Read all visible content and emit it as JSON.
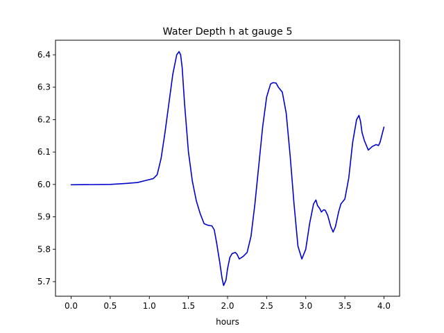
{
  "chart_data": {
    "type": "line",
    "title": "Water Depth h at gauge 5",
    "xlabel": "hours",
    "ylabel": "",
    "xlim": [
      -0.2,
      4.2
    ],
    "ylim": [
      5.655,
      6.445
    ],
    "grid": false,
    "xticks": [
      0.0,
      0.5,
      1.0,
      1.5,
      2.0,
      2.5,
      3.0,
      3.5,
      4.0
    ],
    "xtick_labels": [
      "0.0",
      "0.5",
      "1.0",
      "1.5",
      "2.0",
      "2.5",
      "3.0",
      "3.5",
      "4.0"
    ],
    "yticks": [
      5.7,
      5.8,
      5.9,
      6.0,
      6.1,
      6.2,
      6.3,
      6.4
    ],
    "ytick_labels": [
      "5.7",
      "5.8",
      "5.9",
      "6.0",
      "6.1",
      "6.2",
      "6.3",
      "6.4"
    ],
    "series": [
      {
        "color": "#0000cc",
        "x": [
          0.0,
          0.5,
          0.7,
          0.85,
          0.95,
          1.05,
          1.1,
          1.15,
          1.2,
          1.25,
          1.3,
          1.35,
          1.38,
          1.4,
          1.42,
          1.45,
          1.5,
          1.55,
          1.6,
          1.65,
          1.7,
          1.75,
          1.8,
          1.83,
          1.86,
          1.9,
          1.93,
          1.95,
          1.98,
          2.0,
          2.03,
          2.06,
          2.1,
          2.12,
          2.15,
          2.2,
          2.25,
          2.3,
          2.35,
          2.4,
          2.45,
          2.5,
          2.55,
          2.58,
          2.62,
          2.65,
          2.7,
          2.75,
          2.8,
          2.85,
          2.9,
          2.95,
          3.0,
          3.05,
          3.1,
          3.13,
          3.15,
          3.18,
          3.2,
          3.23,
          3.25,
          3.28,
          3.32,
          3.35,
          3.38,
          3.42,
          3.45,
          3.5,
          3.55,
          3.6,
          3.65,
          3.68,
          3.7,
          3.72,
          3.75,
          3.8,
          3.85,
          3.9,
          3.93,
          3.95,
          4.0
        ],
        "y": [
          5.999,
          6.0,
          6.003,
          6.006,
          6.012,
          6.018,
          6.03,
          6.08,
          6.16,
          6.25,
          6.34,
          6.4,
          6.41,
          6.4,
          6.36,
          6.25,
          6.1,
          6.01,
          5.95,
          5.91,
          5.879,
          5.874,
          5.872,
          5.86,
          5.82,
          5.76,
          5.71,
          5.688,
          5.705,
          5.74,
          5.775,
          5.787,
          5.79,
          5.785,
          5.77,
          5.778,
          5.79,
          5.84,
          5.94,
          6.06,
          6.18,
          6.27,
          6.31,
          6.314,
          6.313,
          6.3,
          6.285,
          6.22,
          6.09,
          5.94,
          5.81,
          5.77,
          5.8,
          5.88,
          5.94,
          5.952,
          5.935,
          5.925,
          5.915,
          5.922,
          5.92,
          5.905,
          5.87,
          5.853,
          5.87,
          5.915,
          5.94,
          5.955,
          6.02,
          6.13,
          6.2,
          6.213,
          6.195,
          6.16,
          6.135,
          6.106,
          6.117,
          6.123,
          6.12,
          6.13,
          6.177
        ]
      }
    ]
  }
}
